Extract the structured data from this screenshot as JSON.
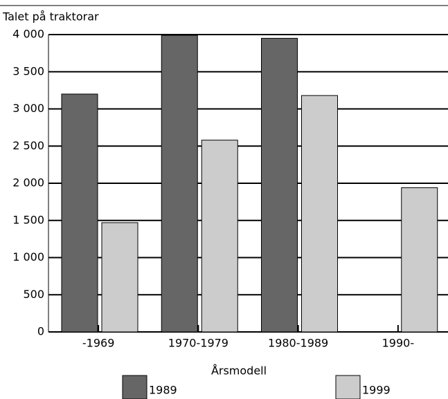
{
  "chart_data": {
    "type": "bar",
    "title": "Talet på traktorar",
    "x_label": "Årsmodell",
    "categories": [
      "-1969",
      "1970-1979",
      "1980-1989",
      "1990-"
    ],
    "series": [
      {
        "name": "1989",
        "color": "#666666",
        "values": [
          3200,
          3990,
          3950,
          null
        ]
      },
      {
        "name": "1999",
        "color": "#cccccc",
        "values": [
          1470,
          2580,
          3180,
          1940
        ]
      }
    ],
    "ylim": [
      0,
      4000
    ],
    "yticks": [
      0,
      500,
      {
        "value": 1000,
        "label": "1 000"
      },
      {
        "value": 1500,
        "label": "1 500"
      },
      {
        "value": 2000,
        "label": "2 000"
      },
      {
        "value": 2500,
        "label": "2 500"
      },
      {
        "value": 3000,
        "label": "3 000"
      },
      {
        "value": 3500,
        "label": "3 500"
      },
      {
        "value": 4000,
        "label": "4 000"
      }
    ],
    "grid": true
  }
}
